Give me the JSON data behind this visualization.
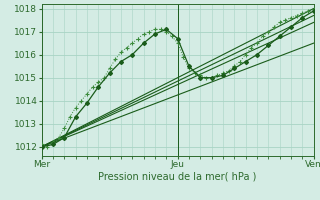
{
  "xlabel": "Pression niveau de la mer( hPa )",
  "bg_color": "#d4ece4",
  "grid_color": "#a8d4c4",
  "text_color": "#2d6a2d",
  "line_color_dark": "#1a5c1a",
  "line_color_mid": "#3a8a3a",
  "ylim": [
    1011.6,
    1018.2
  ],
  "xlim": [
    0,
    48
  ],
  "xtick_positions": [
    0,
    24,
    48
  ],
  "xtick_labels": [
    "Mer",
    "Jeu",
    "Ven"
  ],
  "ytick_positions": [
    1012,
    1013,
    1014,
    1015,
    1016,
    1017,
    1018
  ],
  "series_dotted": {
    "x": [
      0,
      1,
      2,
      3,
      4,
      5,
      6,
      7,
      8,
      9,
      10,
      11,
      12,
      13,
      14,
      15,
      16,
      17,
      18,
      19,
      20,
      21,
      22,
      23,
      24,
      25,
      26,
      27,
      28,
      29,
      30,
      31,
      32,
      33,
      34,
      35,
      36,
      37,
      38,
      39,
      40,
      41,
      42,
      43,
      44,
      45,
      46,
      47,
      48
    ],
    "y": [
      1012.1,
      1012.0,
      1012.2,
      1012.4,
      1012.8,
      1013.3,
      1013.7,
      1014.0,
      1014.3,
      1014.6,
      1014.8,
      1015.0,
      1015.4,
      1015.8,
      1016.1,
      1016.3,
      1016.5,
      1016.7,
      1016.9,
      1017.0,
      1017.1,
      1017.1,
      1017.0,
      1016.8,
      1016.5,
      1015.9,
      1015.4,
      1015.2,
      1015.1,
      1015.0,
      1015.0,
      1015.1,
      1015.2,
      1015.3,
      1015.5,
      1015.7,
      1016.0,
      1016.3,
      1016.5,
      1016.8,
      1017.0,
      1017.2,
      1017.4,
      1017.5,
      1017.6,
      1017.7,
      1017.8,
      1017.9,
      1018.0
    ]
  },
  "series_solid": {
    "x": [
      0,
      2,
      4,
      6,
      8,
      10,
      12,
      14,
      16,
      18,
      20,
      22,
      24,
      26,
      28,
      30,
      32,
      34,
      36,
      38,
      40,
      42,
      44,
      46,
      48
    ],
    "y": [
      1012.0,
      1012.1,
      1012.4,
      1013.3,
      1013.9,
      1014.6,
      1015.2,
      1015.7,
      1016.0,
      1016.5,
      1016.9,
      1017.1,
      1016.7,
      1015.5,
      1015.0,
      1015.0,
      1015.1,
      1015.4,
      1015.7,
      1016.0,
      1016.4,
      1016.8,
      1017.2,
      1017.6,
      1017.9
    ]
  },
  "straight_lines": [
    {
      "x": [
        0,
        48
      ],
      "y": [
        1012.0,
        1018.0
      ]
    },
    {
      "x": [
        0,
        48
      ],
      "y": [
        1012.0,
        1017.7
      ]
    },
    {
      "x": [
        0,
        48
      ],
      "y": [
        1012.0,
        1017.4
      ]
    },
    {
      "x": [
        0,
        48
      ],
      "y": [
        1012.0,
        1016.5
      ]
    }
  ]
}
